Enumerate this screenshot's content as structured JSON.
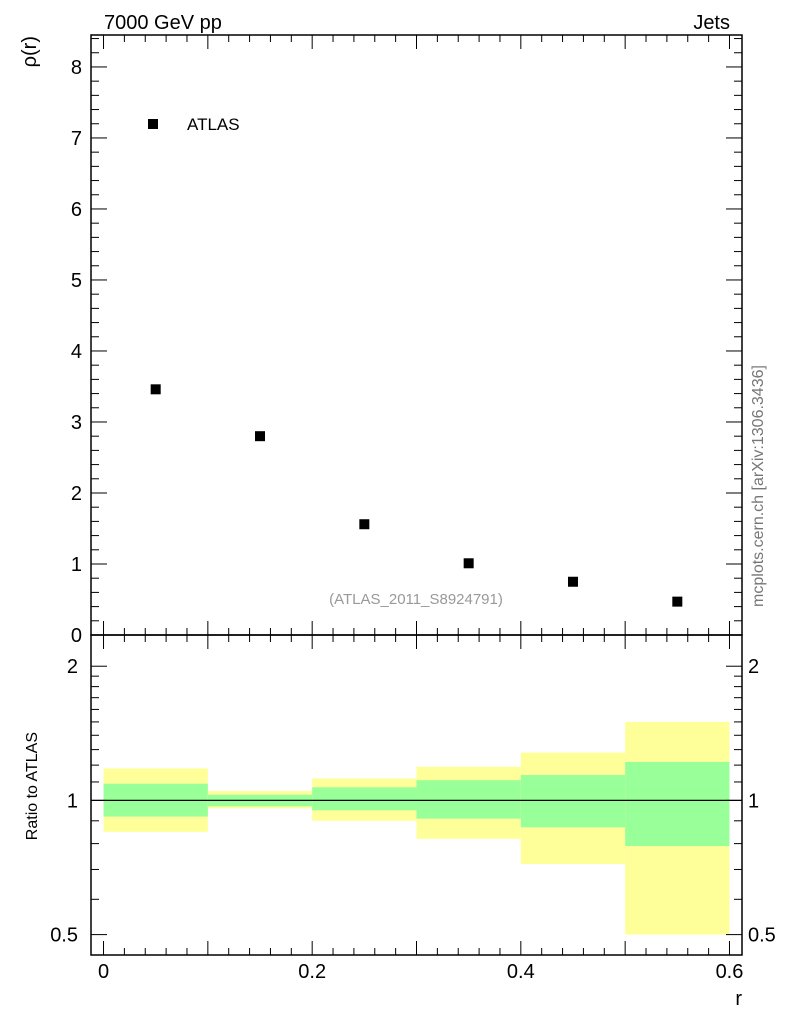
{
  "header": {
    "left": "7000 GeV pp",
    "right": "Jets"
  },
  "side_label": "mcplots.cern.ch [arXiv:1306.3436]",
  "colors": {
    "data_marker": "#000000",
    "band_inner": "#99ff99",
    "band_outer": "#ffff99",
    "ratio_line": "#000000",
    "analysis_label": "#999999"
  },
  "chart_data": [
    {
      "type": "scatter",
      "panel": "main",
      "ylabel": "ρ(r)",
      "ylim": [
        0,
        8.45
      ],
      "xlim": [
        -0.012,
        0.612
      ],
      "yticks": [
        0,
        1,
        2,
        3,
        4,
        5,
        6,
        7,
        8
      ],
      "ytick_labels": [
        "0",
        "1",
        "2",
        "3",
        "4",
        "5",
        "6",
        "7",
        "8"
      ],
      "legend": {
        "entries": [
          "ATLAS"
        ],
        "placement": "top-left"
      },
      "analysis_label": "(ATLAS_2011_S8924791)",
      "series": [
        {
          "name": "ATLAS",
          "x": [
            0.05,
            0.15,
            0.25,
            0.35,
            0.45,
            0.55
          ],
          "y": [
            3.46,
            2.8,
            1.56,
            1.01,
            0.75,
            0.47
          ]
        }
      ]
    },
    {
      "type": "area",
      "panel": "ratio",
      "ylabel": "Ratio to ATLAS",
      "xlabel": "r",
      "ylim": [
        0.45,
        2.35
      ],
      "log_y": true,
      "xlim": [
        -0.012,
        0.612
      ],
      "yticks": [
        0.5,
        1,
        2
      ],
      "ytick_labels": [
        "0.5",
        "1",
        "2"
      ],
      "xticks": [
        0,
        0.2,
        0.4,
        0.6
      ],
      "xtick_labels": [
        "0",
        "0.2",
        "0.4",
        "0.6"
      ],
      "reference_line": 1,
      "bins": [
        {
          "x_low": 0.0,
          "x_high": 0.1,
          "inner_low": 0.92,
          "inner_high": 1.09,
          "outer_low": 0.85,
          "outer_high": 1.18
        },
        {
          "x_low": 0.1,
          "x_high": 0.2,
          "inner_low": 0.97,
          "inner_high": 1.03,
          "outer_low": 0.96,
          "outer_high": 1.05
        },
        {
          "x_low": 0.2,
          "x_high": 0.3,
          "inner_low": 0.95,
          "inner_high": 1.07,
          "outer_low": 0.9,
          "outer_high": 1.12
        },
        {
          "x_low": 0.3,
          "x_high": 0.4,
          "inner_low": 0.91,
          "inner_high": 1.11,
          "outer_low": 0.82,
          "outer_high": 1.19
        },
        {
          "x_low": 0.4,
          "x_high": 0.5,
          "inner_low": 0.87,
          "inner_high": 1.14,
          "outer_low": 0.72,
          "outer_high": 1.28
        },
        {
          "x_low": 0.5,
          "x_high": 0.6,
          "inner_low": 0.79,
          "inner_high": 1.22,
          "outer_low": 0.5,
          "outer_high": 1.5
        }
      ]
    }
  ]
}
